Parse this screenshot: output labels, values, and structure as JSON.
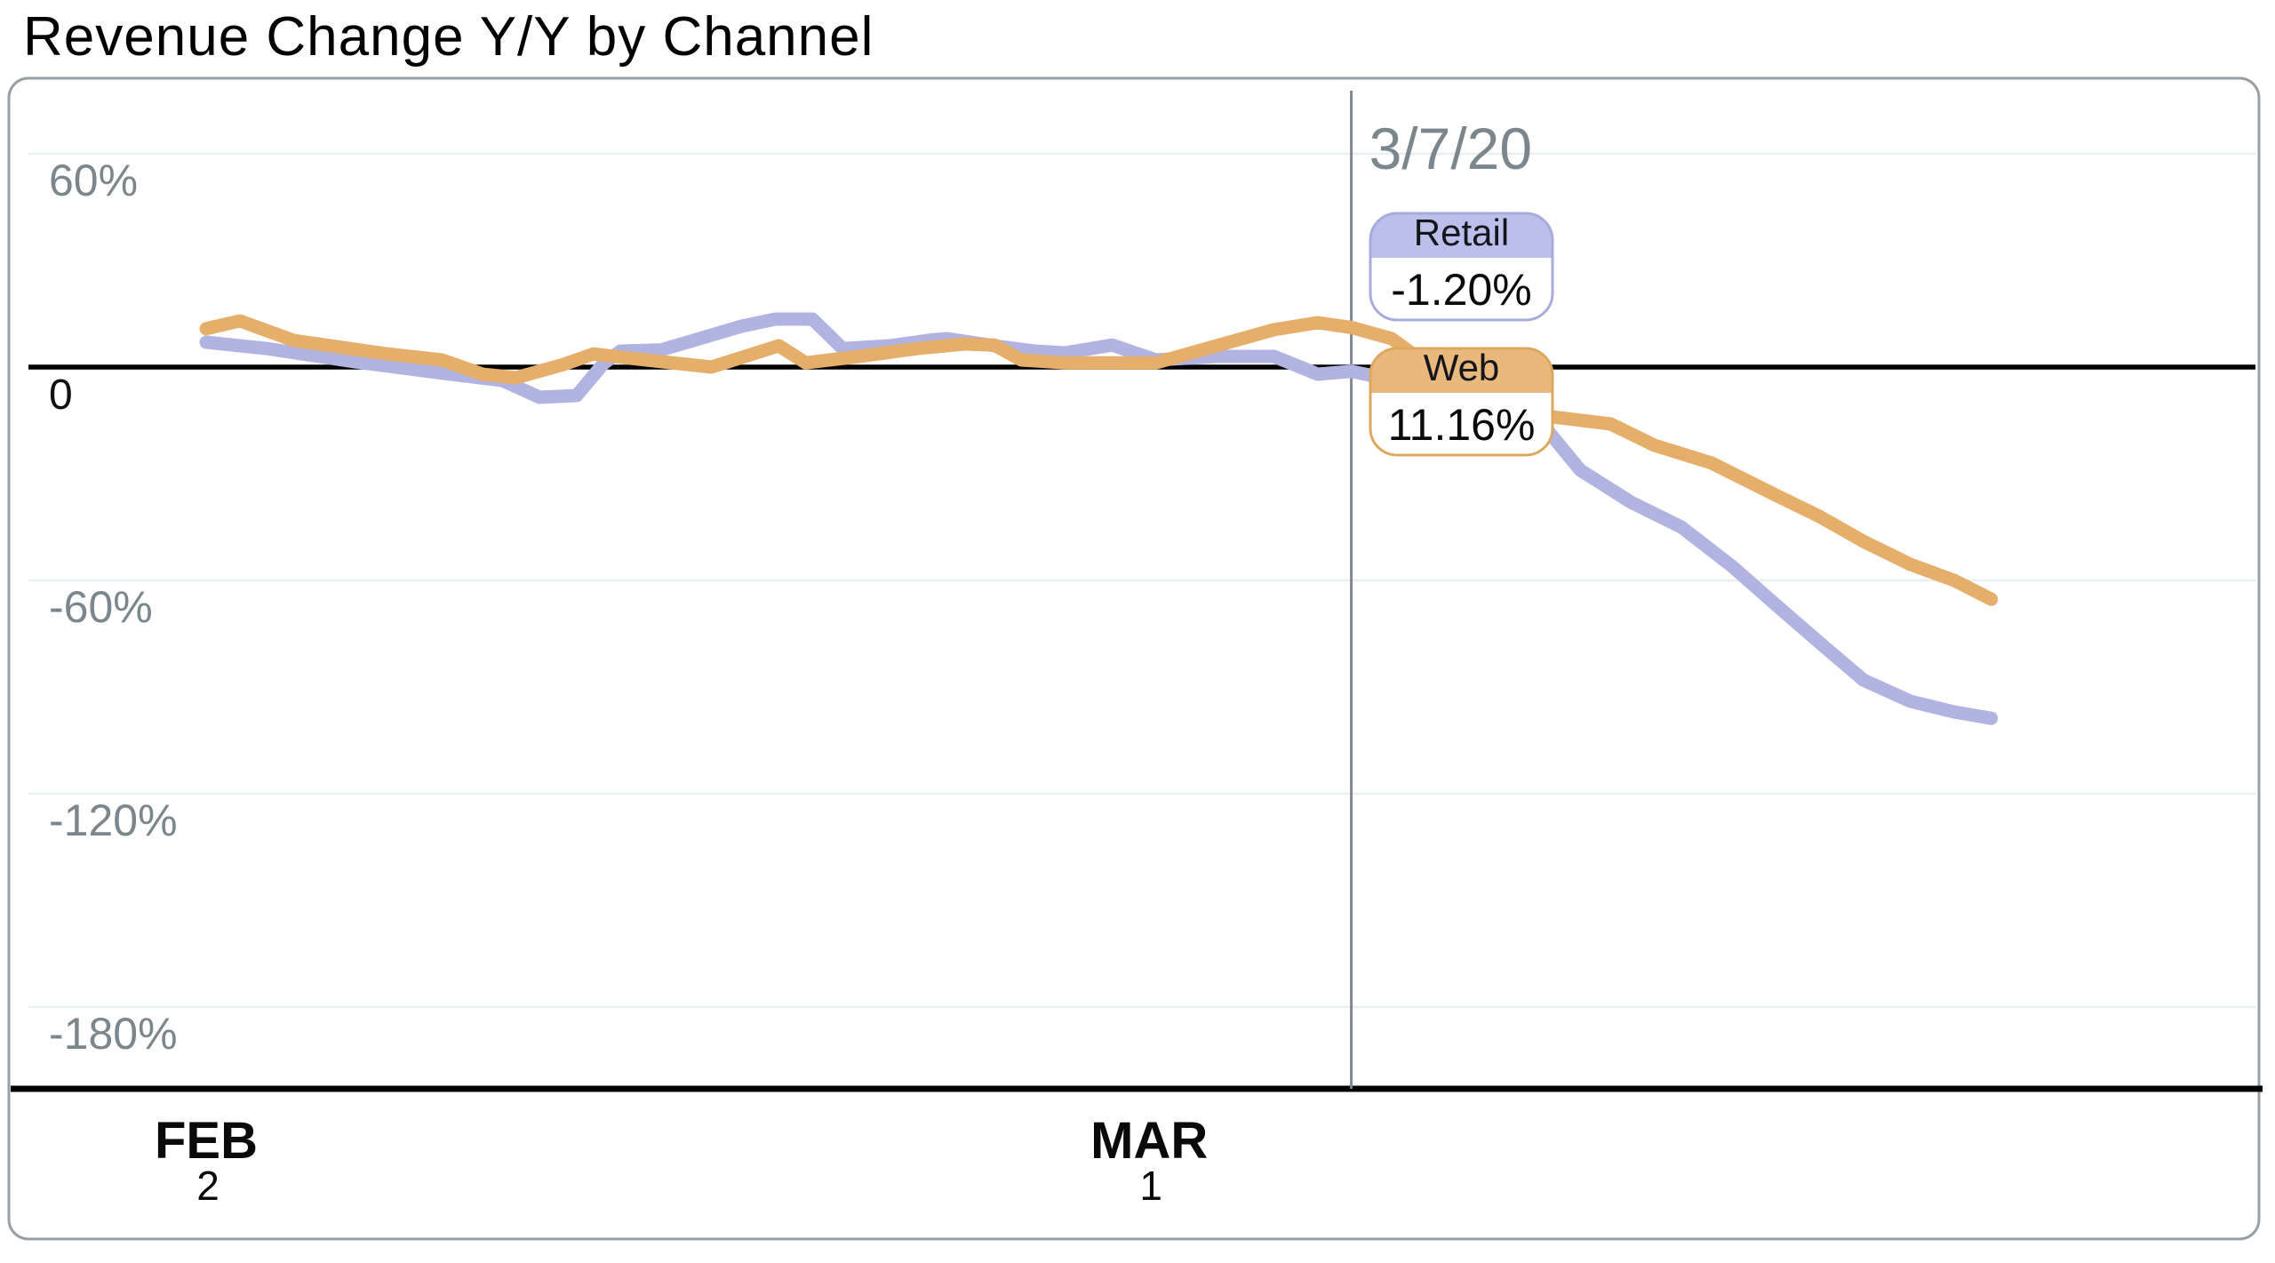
{
  "header": {
    "title": "Revenue Change Y/Y by Channel"
  },
  "chart_data": {
    "type": "line",
    "title": "Revenue Change Y/Y by Channel",
    "x_axis": {
      "unit": "date",
      "ticks": [
        {
          "month": "FEB",
          "day": "2",
          "day_index": 0
        },
        {
          "month": "MAR",
          "day": "1",
          "day_index": 28
        }
      ],
      "start_label": "FEB 2",
      "end_day_index": 53
    },
    "y_axis": {
      "unit": "%",
      "ticks": [
        {
          "label": "60%",
          "value": 60
        },
        {
          "label": "0",
          "value": 0
        },
        {
          "label": "-60%",
          "value": -60
        },
        {
          "label": "-120%",
          "value": -120
        },
        {
          "label": "-180%",
          "value": -180
        }
      ]
    },
    "grid_color": "#e8efee",
    "axis_color": "#000000",
    "label_color": "#7c868d",
    "series": [
      {
        "name": "Retail",
        "color": "#b1b3e1",
        "points": [
          [
            0,
            7
          ],
          [
            1.8,
            5.2
          ],
          [
            4.4,
            1.5
          ],
          [
            7,
            -1.7
          ],
          [
            8.8,
            -3.8
          ],
          [
            9.9,
            -8.5
          ],
          [
            11,
            -8
          ],
          [
            11.8,
            1
          ],
          [
            12.3,
            4.5
          ],
          [
            13.5,
            4.8
          ],
          [
            15.9,
            11.5
          ],
          [
            16.9,
            13.5
          ],
          [
            18,
            13.5
          ],
          [
            18.9,
            5.2
          ],
          [
            20.3,
            6
          ],
          [
            21.6,
            7.7
          ],
          [
            22,
            8
          ],
          [
            23.4,
            6
          ],
          [
            24.6,
            4.5
          ],
          [
            25.5,
            4
          ],
          [
            26.9,
            6.2
          ],
          [
            28.2,
            2
          ],
          [
            30,
            3
          ],
          [
            31.7,
            3
          ],
          [
            32.1,
            1.5
          ],
          [
            33,
            -2
          ],
          [
            34,
            -1.2
          ],
          [
            35.2,
            -3.5
          ],
          [
            36.5,
            -7
          ],
          [
            38,
            -12
          ],
          [
            39.8,
            -17.5
          ],
          [
            40.8,
            -29
          ],
          [
            42.3,
            -38
          ],
          [
            43.8,
            -45
          ],
          [
            45.3,
            -56
          ],
          [
            46.6,
            -66.8
          ],
          [
            47.9,
            -77.5
          ],
          [
            49.2,
            -88
          ],
          [
            50.6,
            -94
          ],
          [
            51.9,
            -97
          ],
          [
            53,
            -98.8
          ]
        ]
      },
      {
        "name": "Web",
        "color": "#e5ae6b",
        "points": [
          [
            0,
            10.8
          ],
          [
            1,
            13
          ],
          [
            2.6,
            7.5
          ],
          [
            5.3,
            3.8
          ],
          [
            7,
            2
          ],
          [
            8.2,
            -2
          ],
          [
            9.2,
            -3
          ],
          [
            10.6,
            0.7
          ],
          [
            11.5,
            3.7
          ],
          [
            12.3,
            2.8
          ],
          [
            15,
            0
          ],
          [
            17,
            6
          ],
          [
            17.8,
            1.2
          ],
          [
            19.4,
            3
          ],
          [
            21.1,
            5.2
          ],
          [
            22.5,
            6.5
          ],
          [
            23.4,
            6.2
          ],
          [
            24.2,
            2
          ],
          [
            25.5,
            1.2
          ],
          [
            28.2,
            1.2
          ],
          [
            30,
            6
          ],
          [
            31.7,
            10.5
          ],
          [
            33,
            12.5
          ],
          [
            34,
            11.16
          ],
          [
            35.2,
            8
          ],
          [
            36.5,
            -1
          ],
          [
            38,
            -8
          ],
          [
            39.8,
            -13.8
          ],
          [
            41.7,
            -16
          ],
          [
            43,
            -22
          ],
          [
            44.7,
            -27
          ],
          [
            46.6,
            -36
          ],
          [
            47.9,
            -42
          ],
          [
            49.2,
            -49
          ],
          [
            50.6,
            -55.5
          ],
          [
            51.9,
            -60
          ],
          [
            53,
            -65.3
          ]
        ]
      }
    ],
    "crosshair": {
      "date_label": "3/7/20",
      "day_index": 34,
      "color": "#7f8790",
      "tooltips": [
        {
          "series": "Retail",
          "value_label": "-1.20%",
          "value": -1.2,
          "border_color": "#a8abdc",
          "header_color": "#bcbfe9"
        },
        {
          "series": "Web",
          "value_label": "11.16%",
          "value": 11.16,
          "border_color": "#dda75f",
          "header_color": "#e9b87c"
        }
      ]
    }
  }
}
